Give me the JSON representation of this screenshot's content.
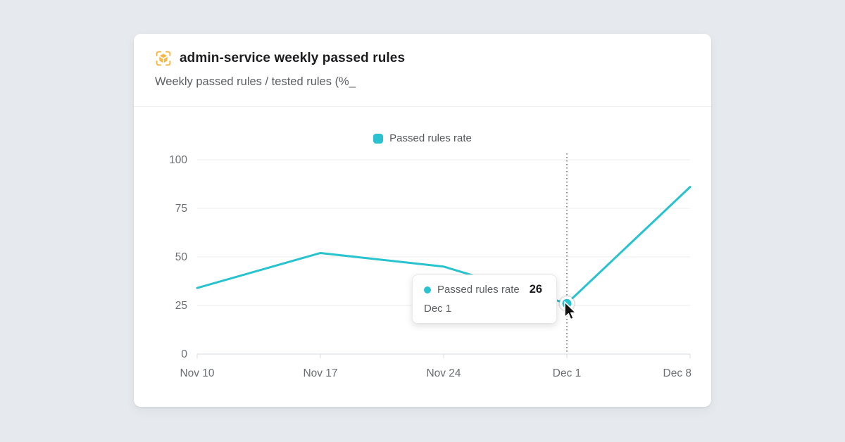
{
  "page": {
    "background_color": "#E6EAEE"
  },
  "card": {
    "title": "admin-service weekly passed rules",
    "subtitle": "Weekly passed rules / tested rules (%_",
    "icon": "package-cube-scan-icon",
    "icon_color": "#F4B844"
  },
  "legend": {
    "label": "Passed rules rate",
    "swatch_color": "#29C3CF"
  },
  "tooltip": {
    "series_label": "Passed rules rate",
    "value": "26",
    "category": "Dec 1",
    "dot_color": "#29C3CF"
  },
  "chart_data": {
    "type": "line",
    "title": "admin-service weekly passed rules",
    "categories": [
      "Nov 10",
      "Nov 17",
      "Nov 24",
      "Dec 1",
      "Dec 8"
    ],
    "series": [
      {
        "name": "Passed rules rate",
        "values": [
          34,
          52,
          45,
          26,
          86
        ]
      }
    ],
    "xlabel": "",
    "ylabel": "",
    "ylim": [
      0,
      100
    ],
    "yticks": [
      0,
      25,
      50,
      75,
      100
    ],
    "grid": true,
    "legend_position": "top",
    "line_color": "#29C3CF",
    "grid_color": "#ECECEE",
    "axis_line_color": "#D9DBDD",
    "highlight": {
      "category": "Dec 1",
      "value": 26
    }
  }
}
